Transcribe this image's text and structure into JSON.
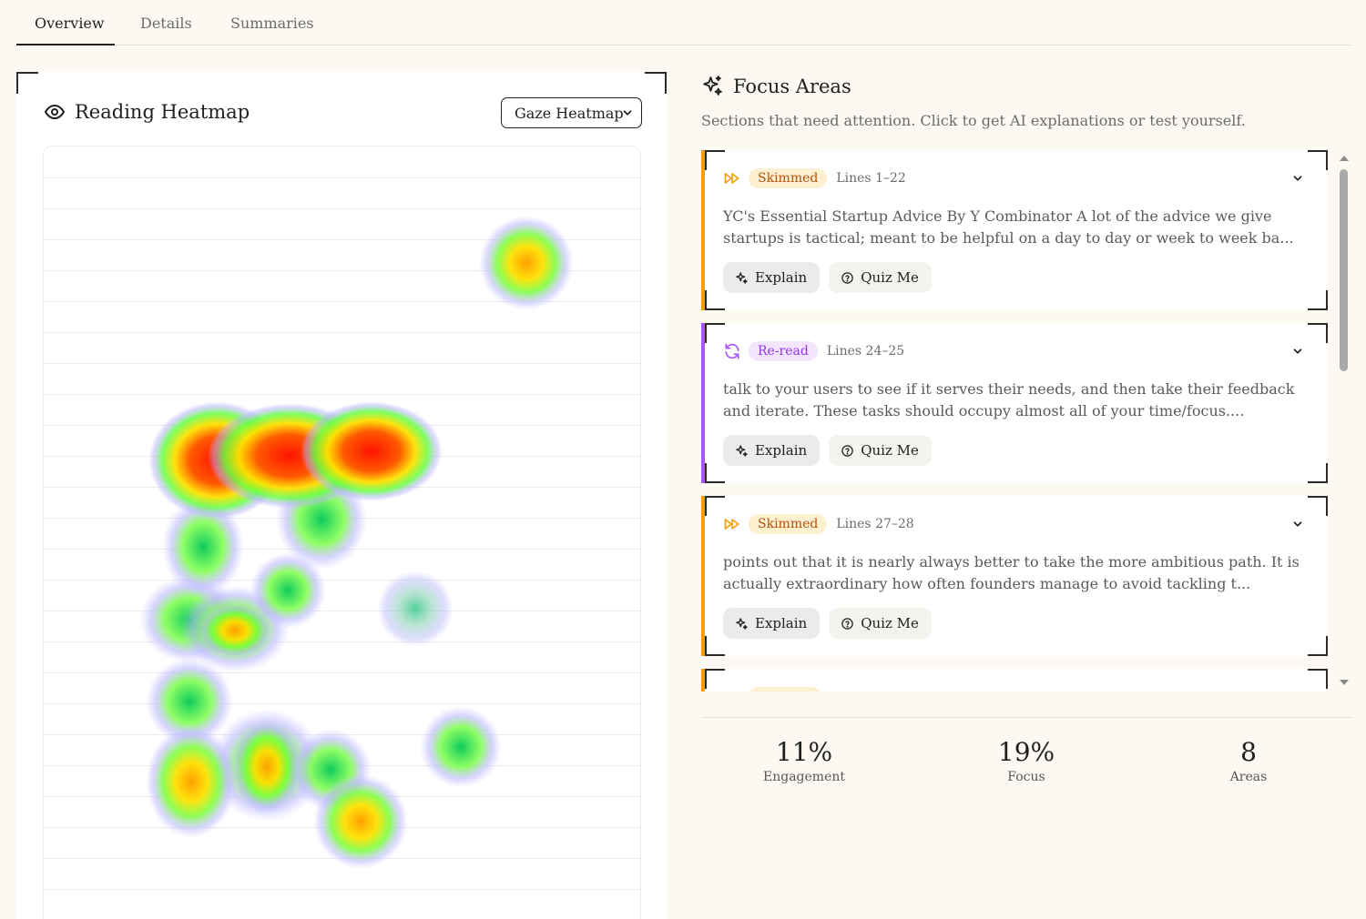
{
  "tabs": [
    {
      "label": "Overview",
      "active": true
    },
    {
      "label": "Details",
      "active": false
    },
    {
      "label": "Summaries",
      "active": false
    }
  ],
  "heatmap": {
    "title": "Reading Heatmap",
    "mode_select": {
      "selected": "Gaze Heatmap"
    }
  },
  "focus": {
    "title": "Focus Areas",
    "subtitle": "Sections that need attention. Click to get AI explanations or test yourself.",
    "cards": [
      {
        "status": "Skimmed",
        "status_type": "skimmed",
        "accent": "#f59e0b",
        "lines": "Lines 1–22",
        "excerpt": "YC's Essential Startup Advice By Y Combinator A lot of the advice we give startups is tactical; meant to be helpful on a day to day or week to week ba...",
        "explain_label": "Explain",
        "quiz_label": "Quiz Me"
      },
      {
        "status": "Re-read",
        "status_type": "reread",
        "accent": "#a855f7",
        "lines": "Lines 24–25",
        "excerpt": "talk to your users to see if it serves their needs, and then take their feedback and iterate. These tasks should occupy almost all of your time/focus....",
        "explain_label": "Explain",
        "quiz_label": "Quiz Me"
      },
      {
        "status": "Skimmed",
        "status_type": "skimmed",
        "accent": "#f59e0b",
        "lines": "Lines 27–28",
        "excerpt": "points out that it is nearly always better to take the more ambitious path. It is actually extraordinary how often founders manage to avoid tackling t...",
        "explain_label": "Explain",
        "quiz_label": "Quiz Me"
      }
    ]
  },
  "stats": [
    {
      "value": "11%",
      "label": "Engagement"
    },
    {
      "value": "19%",
      "label": "Focus"
    },
    {
      "value": "8",
      "label": "Areas"
    }
  ]
}
